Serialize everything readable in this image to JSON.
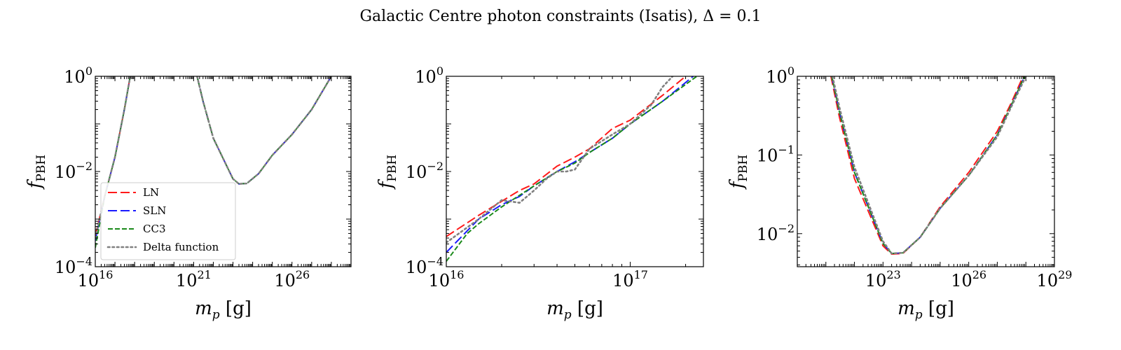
{
  "title": "Galactic Centre photon constraints (Isatis), Δ = 0.1",
  "colors": {
    "LN": "#ff1a1a",
    "SLN": "#1a1aff",
    "CC3": "#1a8a1a",
    "Delta function": "#808080"
  },
  "chart_data": [
    {
      "type": "line",
      "xscale": "log",
      "yscale": "log",
      "xlim": [
        1e+16,
        1e+29
      ],
      "ylim": [
        0.0001,
        1
      ],
      "xticks": [
        {
          "v": 1e+16,
          "b": "10",
          "e": "16"
        },
        {
          "v": 1e+21,
          "b": "10",
          "e": "21"
        },
        {
          "v": 1e+26,
          "b": "10",
          "e": "26"
        }
      ],
      "yticks": [
        {
          "v": 0.0001,
          "b": "10",
          "e": "−4"
        },
        {
          "v": 0.01,
          "b": "10",
          "e": "−2"
        },
        {
          "v": 1,
          "b": "10",
          "e": "0"
        }
      ],
      "xlabel": "m_p [g]",
      "ylabel": "f_PBH",
      "legend": {
        "placement": "lower-left",
        "entries": [
          "LN",
          "SLN",
          "CC3",
          "Delta function"
        ]
      },
      "series": [
        {
          "name": "LN",
          "style": "dashed-long",
          "segments": [
            [
              [
                1e+16,
                0.00045
              ],
              [
                3e+16,
                0.003
              ],
              [
                1e+17,
                0.02
              ],
              [
                3e+17,
                0.2
              ],
              [
                6e+17,
                1
              ]
            ],
            [
              [
                1.5e+21,
                1
              ],
              [
                3e+21,
                0.3
              ],
              [
                1e+22,
                0.05
              ],
              [
                1e+23,
                0.007
              ],
              [
                2e+23,
                0.0055
              ],
              [
                5e+23,
                0.0056
              ],
              [
                2e+24,
                0.009
              ],
              [
                1e+25,
                0.022
              ],
              [
                1e+26,
                0.06
              ],
              [
                1e+27,
                0.2
              ],
              [
                1e+28,
                1
              ]
            ]
          ]
        },
        {
          "name": "SLN",
          "style": "dashed-long",
          "segments": [
            [
              [
                1e+16,
                0.00035
              ],
              [
                3e+16,
                0.003
              ],
              [
                1e+17,
                0.02
              ],
              [
                3e+17,
                0.2
              ],
              [
                6e+17,
                1
              ]
            ],
            [
              [
                1.5e+21,
                1
              ],
              [
                3e+21,
                0.3
              ],
              [
                1e+22,
                0.05
              ],
              [
                1e+23,
                0.007
              ],
              [
                2e+23,
                0.0055
              ],
              [
                5e+23,
                0.0056
              ],
              [
                2e+24,
                0.009
              ],
              [
                1e+25,
                0.022
              ],
              [
                1e+26,
                0.06
              ],
              [
                1e+27,
                0.2
              ],
              [
                1e+28,
                1
              ]
            ]
          ]
        },
        {
          "name": "CC3",
          "style": "dashed-short",
          "segments": [
            [
              [
                1e+16,
                0.00025
              ],
              [
                3e+16,
                0.003
              ],
              [
                1e+17,
                0.02
              ],
              [
                3e+17,
                0.2
              ],
              [
                6e+17,
                1
              ]
            ],
            [
              [
                1.5e+21,
                1
              ],
              [
                3e+21,
                0.3
              ],
              [
                1e+22,
                0.05
              ],
              [
                1e+23,
                0.007
              ],
              [
                2e+23,
                0.0055
              ],
              [
                5e+23,
                0.0056
              ],
              [
                2e+24,
                0.009
              ],
              [
                1e+25,
                0.022
              ],
              [
                1e+26,
                0.06
              ],
              [
                1e+27,
                0.2
              ],
              [
                1e+28,
                1
              ]
            ]
          ]
        },
        {
          "name": "Delta function",
          "style": "dotted",
          "segments": [
            [
              [
                1e+16,
                0.0004
              ],
              [
                3e+16,
                0.003
              ],
              [
                1e+17,
                0.02
              ],
              [
                3e+17,
                0.2
              ],
              [
                6e+17,
                1
              ]
            ],
            [
              [
                1.5e+21,
                1
              ],
              [
                3e+21,
                0.3
              ],
              [
                1e+22,
                0.05
              ],
              [
                1e+23,
                0.007
              ],
              [
                2e+23,
                0.0055
              ],
              [
                5e+23,
                0.0056
              ],
              [
                2e+24,
                0.009
              ],
              [
                1e+25,
                0.022
              ],
              [
                1e+26,
                0.06
              ],
              [
                1e+27,
                0.2
              ],
              [
                1e+28,
                1
              ]
            ]
          ]
        }
      ]
    },
    {
      "type": "line",
      "xscale": "log",
      "yscale": "log",
      "xlim": [
        1e+16,
        2.5e+17
      ],
      "ylim": [
        0.0001,
        1
      ],
      "xticks": [
        {
          "v": 1e+16,
          "b": "10",
          "e": "16"
        },
        {
          "v": 1e+17,
          "b": "10",
          "e": "17"
        }
      ],
      "yticks": [
        {
          "v": 0.0001,
          "b": "10",
          "e": "−4"
        },
        {
          "v": 0.01,
          "b": "10",
          "e": "−2"
        },
        {
          "v": 1,
          "b": "10",
          "e": "0"
        }
      ],
      "xlabel": "m_p [g]",
      "ylabel": "f_PBH",
      "series": [
        {
          "name": "LN",
          "style": "dashed-long",
          "segments": [
            [
              [
                1e+16,
                0.00043
              ],
              [
                1.5e+16,
                0.0012
              ],
              [
                2.5e+16,
                0.004
              ],
              [
                3e+16,
                0.0055
              ],
              [
                4e+16,
                0.013
              ],
              [
                5e+16,
                0.02
              ],
              [
                6e+16,
                0.03
              ],
              [
                8e+16,
                0.08
              ],
              [
                1e+17,
                0.12
              ],
              [
                1.5e+17,
                0.4
              ],
              [
                2e+17,
                1
              ]
            ]
          ]
        },
        {
          "name": "SLN",
          "style": "dashed-long",
          "segments": [
            [
              [
                1e+16,
                0.0002
              ],
              [
                1.5e+16,
                0.001
              ],
              [
                2e+16,
                0.002
              ],
              [
                2.5e+16,
                0.003
              ],
              [
                3e+16,
                0.005
              ],
              [
                4e+16,
                0.01
              ],
              [
                5e+16,
                0.016
              ],
              [
                6e+16,
                0.025
              ],
              [
                8e+16,
                0.05
              ],
              [
                1e+17,
                0.1
              ],
              [
                1.5e+17,
                0.3
              ],
              [
                2.2e+17,
                1
              ]
            ]
          ]
        },
        {
          "name": "CC3",
          "style": "dashed-short",
          "segments": [
            [
              [
                1e+16,
                0.00013
              ],
              [
                1.3e+16,
                0.0005
              ],
              [
                1.5e+16,
                0.0008
              ],
              [
                2e+16,
                0.0018
              ],
              [
                3e+16,
                0.005
              ],
              [
                4e+16,
                0.01
              ],
              [
                5e+16,
                0.015
              ],
              [
                6e+16,
                0.025
              ],
              [
                8e+16,
                0.05
              ],
              [
                1e+17,
                0.1
              ],
              [
                1.5e+17,
                0.3
              ],
              [
                2.3e+17,
                1
              ]
            ]
          ]
        },
        {
          "name": "Delta function",
          "style": "dotted",
          "segments": [
            [
              [
                1e+16,
                0.00032
              ],
              [
                1.5e+16,
                0.001
              ],
              [
                2e+16,
                0.0025
              ],
              [
                2.5e+16,
                0.0022
              ],
              [
                3e+16,
                0.004
              ],
              [
                3.5e+16,
                0.007
              ],
              [
                4e+16,
                0.01
              ],
              [
                4.5e+16,
                0.01
              ],
              [
                5e+16,
                0.011
              ],
              [
                6e+16,
                0.03
              ],
              [
                8e+16,
                0.06
              ],
              [
                1e+17,
                0.1
              ],
              [
                1.3e+17,
                0.25
              ],
              [
                1.5e+17,
                0.6
              ],
              [
                1.7e+17,
                1
              ]
            ]
          ]
        }
      ]
    },
    {
      "type": "line",
      "xscale": "log",
      "yscale": "log",
      "xlim": [
        1e+20,
        1e+29
      ],
      "ylim": [
        0.0038,
        1
      ],
      "xticks": [
        {
          "v": 1e+23,
          "b": "10",
          "e": "23"
        },
        {
          "v": 1e+26,
          "b": "10",
          "e": "26"
        },
        {
          "v": 1e+29,
          "b": "10",
          "e": "29"
        }
      ],
      "yticks": [
        {
          "v": 0.01,
          "b": "10",
          "e": "−2"
        },
        {
          "v": 0.1,
          "b": "10",
          "e": "−1"
        },
        {
          "v": 1,
          "b": "10",
          "e": "0"
        }
      ],
      "xlabel": "m_p [g]",
      "ylabel": "f_PBH",
      "series": [
        {
          "name": "LN",
          "style": "dashed-long",
          "segments": [
            [
              [
                1.5e+21,
                1
              ],
              [
                3e+21,
                0.3
              ],
              [
                1e+22,
                0.05
              ],
              [
                1e+23,
                0.007
              ],
              [
                2e+23,
                0.0055
              ],
              [
                5e+23,
                0.0056
              ],
              [
                2e+24,
                0.009
              ],
              [
                1e+25,
                0.022
              ],
              [
                1e+26,
                0.06
              ],
              [
                1e+27,
                0.2
              ],
              [
                3e+27,
                0.45
              ],
              [
                8e+27,
                1
              ]
            ]
          ]
        },
        {
          "name": "SLN",
          "style": "dashed-long",
          "segments": [
            [
              [
                1.6e+21,
                1
              ],
              [
                3e+21,
                0.35
              ],
              [
                1e+22,
                0.06
              ],
              [
                1e+23,
                0.0075
              ],
              [
                2e+23,
                0.0056
              ],
              [
                5e+23,
                0.0057
              ],
              [
                2e+24,
                0.009
              ],
              [
                1e+25,
                0.021
              ],
              [
                1e+26,
                0.055
              ],
              [
                1e+27,
                0.18
              ],
              [
                3e+27,
                0.42
              ],
              [
                9e+27,
                1
              ]
            ]
          ]
        },
        {
          "name": "CC3",
          "style": "dashed-short",
          "segments": [
            [
              [
                1.6e+21,
                1
              ],
              [
                3e+21,
                0.35
              ],
              [
                1e+22,
                0.06
              ],
              [
                1e+23,
                0.0075
              ],
              [
                2e+23,
                0.0056
              ],
              [
                5e+23,
                0.0057
              ],
              [
                2e+24,
                0.009
              ],
              [
                1e+25,
                0.021
              ],
              [
                1e+26,
                0.055
              ],
              [
                1e+27,
                0.18
              ],
              [
                3e+27,
                0.42
              ],
              [
                9e+27,
                1
              ]
            ]
          ]
        },
        {
          "name": "Delta function",
          "style": "dotted",
          "segments": [
            [
              [
                1.7e+21,
                1
              ],
              [
                3e+21,
                0.4
              ],
              [
                1e+22,
                0.07
              ],
              [
                1e+23,
                0.008
              ],
              [
                2e+23,
                0.0056
              ],
              [
                5e+23,
                0.0057
              ],
              [
                2e+24,
                0.009
              ],
              [
                1e+25,
                0.021
              ],
              [
                1e+26,
                0.055
              ],
              [
                1e+27,
                0.17
              ],
              [
                3e+27,
                0.4
              ],
              [
                1e+28,
                1
              ]
            ]
          ]
        }
      ]
    }
  ]
}
